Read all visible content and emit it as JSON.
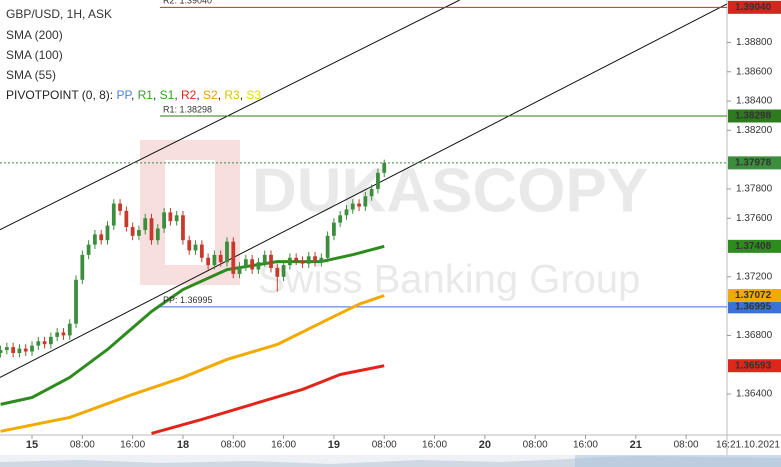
{
  "chart_data": {
    "type": "candlestick",
    "title": "GBP/USD, 1H, ASK",
    "x": [
      -5,
      -4,
      -3,
      -2,
      -1,
      0,
      1,
      2,
      3,
      4,
      5,
      6,
      7,
      8,
      9,
      10,
      11,
      12,
      13,
      14,
      15,
      16,
      17,
      18,
      19,
      20,
      21,
      22,
      23,
      24,
      25,
      26,
      27,
      28,
      29,
      30,
      31,
      32,
      33,
      34,
      35,
      36,
      37,
      38,
      39,
      40,
      41,
      42,
      43,
      44,
      45,
      46,
      47,
      48,
      49,
      50,
      51,
      52,
      53,
      54,
      55,
      56
    ],
    "open": [
      1.3668,
      1.367,
      1.3672,
      1.3668,
      1.3671,
      1.3669,
      1.3673,
      1.3676,
      1.3674,
      1.3679,
      1.3682,
      1.368,
      1.3688,
      1.3718,
      1.3735,
      1.3742,
      1.3749,
      1.3745,
      1.3755,
      1.377,
      1.3765,
      1.3754,
      1.3748,
      1.3752,
      1.376,
      1.3745,
      1.3753,
      1.3764,
      1.3758,
      1.3762,
      1.3745,
      1.3738,
      1.3742,
      1.3733,
      1.3728,
      1.3735,
      1.373,
      1.3744,
      1.3722,
      1.3727,
      1.3732,
      1.3725,
      1.373,
      1.3735,
      1.3726,
      1.372,
      1.3728,
      1.3733,
      1.3731,
      1.3729,
      1.3734,
      1.373,
      1.3733,
      1.3748,
      1.3757,
      1.3762,
      1.3766,
      1.377,
      1.3768,
      1.3775,
      1.378,
      1.3791
    ],
    "high": [
      1.3673,
      1.3675,
      1.3675,
      1.3674,
      1.3674,
      1.3676,
      1.3679,
      1.3679,
      1.3682,
      1.3685,
      1.3685,
      1.3691,
      1.3721,
      1.3738,
      1.3745,
      1.3752,
      1.3752,
      1.3758,
      1.3773,
      1.3773,
      1.3768,
      1.3757,
      1.3755,
      1.3763,
      1.3763,
      1.3756,
      1.3767,
      1.3767,
      1.3765,
      1.3765,
      1.3748,
      1.3745,
      1.3745,
      1.3736,
      1.3738,
      1.3738,
      1.3747,
      1.3747,
      1.373,
      1.3735,
      1.3735,
      1.3733,
      1.3738,
      1.3738,
      1.3729,
      1.3731,
      1.3736,
      1.3736,
      1.3734,
      1.3737,
      1.3737,
      1.3736,
      1.3751,
      1.376,
      1.3765,
      1.3769,
      1.3773,
      1.3773,
      1.3778,
      1.3783,
      1.3794,
      1.38
    ],
    "low": [
      1.3665,
      1.3667,
      1.3665,
      1.3665,
      1.3666,
      1.3666,
      1.367,
      1.3671,
      1.3671,
      1.3676,
      1.3677,
      1.3677,
      1.3685,
      1.3715,
      1.3732,
      1.3739,
      1.3742,
      1.3742,
      1.3752,
      1.3762,
      1.3751,
      1.3745,
      1.3745,
      1.3749,
      1.3742,
      1.3742,
      1.375,
      1.3755,
      1.3755,
      1.3742,
      1.3735,
      1.3735,
      1.373,
      1.3725,
      1.3725,
      1.3727,
      1.3727,
      1.3719,
      1.3719,
      1.3724,
      1.3722,
      1.3722,
      1.3727,
      1.3723,
      1.371,
      1.3717,
      1.3725,
      1.3728,
      1.3726,
      1.3726,
      1.3727,
      1.3727,
      1.373,
      1.3745,
      1.3754,
      1.3759,
      1.3763,
      1.3765,
      1.3765,
      1.3772,
      1.3777,
      1.3788
    ],
    "close": [
      1.367,
      1.3672,
      1.3668,
      1.3671,
      1.3669,
      1.3673,
      1.3676,
      1.3674,
      1.3679,
      1.3682,
      1.368,
      1.3688,
      1.3718,
      1.3735,
      1.3742,
      1.3749,
      1.3745,
      1.3755,
      1.377,
      1.3765,
      1.3754,
      1.3748,
      1.3752,
      1.376,
      1.3745,
      1.3753,
      1.3764,
      1.3758,
      1.3762,
      1.3745,
      1.3738,
      1.3742,
      1.3733,
      1.3728,
      1.3735,
      1.373,
      1.3744,
      1.3722,
      1.3727,
      1.3732,
      1.3725,
      1.373,
      1.3735,
      1.3726,
      1.372,
      1.3728,
      1.3733,
      1.3731,
      1.3729,
      1.3734,
      1.373,
      1.3733,
      1.3748,
      1.3757,
      1.3762,
      1.3766,
      1.377,
      1.3768,
      1.3775,
      1.378,
      1.3791,
      1.37978
    ],
    "up_color": "#3c8d3c",
    "down_color": "#c8392b",
    "xlim": [
      -5.09,
      110.5
    ],
    "xticks": [
      {
        "value": 0,
        "label": "15"
      },
      {
        "value": 8,
        "label": "08:00"
      },
      {
        "value": 16,
        "label": "16:00"
      },
      {
        "value": 24,
        "label": "18"
      },
      {
        "value": 32,
        "label": "08:00"
      },
      {
        "value": 40,
        "label": "16:00"
      },
      {
        "value": 48,
        "label": "19"
      },
      {
        "value": 56,
        "label": "08:00"
      },
      {
        "value": 64,
        "label": "16:00"
      },
      {
        "value": 72,
        "label": "20"
      },
      {
        "value": 80,
        "label": "08:00"
      },
      {
        "value": 88,
        "label": "16:00"
      },
      {
        "value": 96,
        "label": "21"
      },
      {
        "value": 104,
        "label": "08:00"
      }
    ],
    "date_label": "16:21.10.2021",
    "ylim": [
      1.3612,
      1.3909
    ],
    "yticks": [
      {
        "value": 1.364,
        "label": "1.36400"
      },
      {
        "value": 1.368,
        "label": "1.36800"
      },
      {
        "value": 1.372,
        "label": "1.37200"
      },
      {
        "value": 1.376,
        "label": "1.37600"
      },
      {
        "value": 1.378,
        "label": "1.37800"
      },
      {
        "value": 1.382,
        "label": "1.38200"
      },
      {
        "value": 1.384,
        "label": "1.38400"
      },
      {
        "value": 1.386,
        "label": "1.38600"
      },
      {
        "value": 1.388,
        "label": "1.38800"
      }
    ],
    "current_price": {
      "value": 1.37978,
      "label": "1.37978",
      "color": "#3c8d3c"
    },
    "indicators": [
      {
        "name": "SMA (200)",
        "color": "#e0251b",
        "x": [
          19,
          27,
          35,
          43,
          49,
          56
        ],
        "values": [
          1.36131,
          1.36226,
          1.36329,
          1.36431,
          1.36533,
          1.36593
        ],
        "axis_label": "1.36593"
      },
      {
        "name": "SMA (100)",
        "color": "#f2a900",
        "x": [
          -5,
          6,
          16,
          24,
          31,
          39,
          47,
          52,
          56
        ],
        "values": [
          1.36145,
          1.3624,
          1.36397,
          1.36513,
          1.36636,
          1.36738,
          1.36908,
          1.37013,
          1.37072
        ],
        "axis_label": "1.37072"
      },
      {
        "name": "SMA (55)",
        "color": "#2e8b1e",
        "x": [
          -5,
          0,
          6,
          12,
          19,
          24,
          31,
          39,
          46,
          51,
          56
        ],
        "values": [
          1.36329,
          1.36376,
          1.36513,
          1.36704,
          1.36963,
          1.37113,
          1.37249,
          1.37304,
          1.37304,
          1.37351,
          1.37408
        ],
        "axis_label": "1.37408"
      }
    ],
    "pivot_legend": {
      "label": "PIVOTPOINT (0, 8): ",
      "separator": ", ",
      "items": [
        {
          "name": "PP",
          "color": "#4a7fe0"
        },
        {
          "name": "R1",
          "color": "#3a9a2a"
        },
        {
          "name": "S1",
          "color": "#3a9a2a"
        },
        {
          "name": "R2",
          "color": "#e0251b"
        },
        {
          "name": "S2",
          "color": "#e0a000"
        },
        {
          "name": "R3",
          "color": "#d8c400"
        },
        {
          "name": "S3",
          "color": "#e8d800"
        }
      ]
    },
    "pivots": [
      {
        "name": "R2",
        "value": 1.3904,
        "label": "R2: 1.39040",
        "axis_label": "1.39040",
        "color": "#d0281e"
      },
      {
        "name": "R1",
        "value": 1.38298,
        "label": "R1: 1.38298",
        "axis_label": "1.38298",
        "color": "#2e7a1e"
      },
      {
        "name": "PP",
        "value": 1.36995,
        "label": "PP: 1.36995",
        "axis_label": "1.36995",
        "color": "#3a72d8"
      }
    ],
    "trendlines": [
      {
        "x": [
          -5.09,
          68
        ],
        "values": [
          1.37522,
          1.3909
        ]
      },
      {
        "x": [
          -5.09,
          110.5
        ],
        "values": [
          1.36513,
          1.39063
        ]
      }
    ],
    "watermark": {
      "title": "DUKASCOPY",
      "subtitle": "Swiss Banking Group"
    }
  }
}
